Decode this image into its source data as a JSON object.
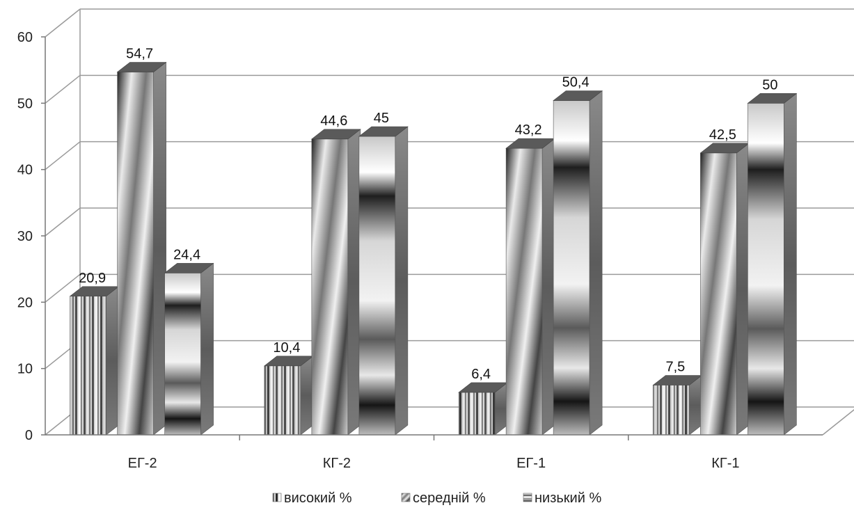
{
  "chart_data": {
    "type": "bar",
    "three_d": true,
    "title": "",
    "xlabel": "",
    "ylabel": "",
    "ylim": [
      0,
      60
    ],
    "yticks": [
      0,
      10,
      20,
      30,
      40,
      50,
      60
    ],
    "grid": true,
    "legend_position": "bottom",
    "categories": [
      "ЕГ-2",
      "КГ-2",
      "ЕГ-1",
      "КГ-1"
    ],
    "series": [
      {
        "name": "високий %",
        "values": [
          20.9,
          10.4,
          6.4,
          7.5
        ],
        "labels": [
          "20,9",
          "10,4",
          "6,4",
          "7,5"
        ],
        "pattern": "vertical-stripes"
      },
      {
        "name": "середній %",
        "values": [
          54.7,
          44.6,
          43.2,
          42.5
        ],
        "labels": [
          "54,7",
          "44,6",
          "43,2",
          "42,5"
        ],
        "pattern": "diagonal-stripes"
      },
      {
        "name": "низький %",
        "values": [
          24.4,
          45,
          50.4,
          50
        ],
        "labels": [
          "24,4",
          "45",
          "50,4",
          "50"
        ],
        "pattern": "horizontal-bands"
      }
    ]
  }
}
